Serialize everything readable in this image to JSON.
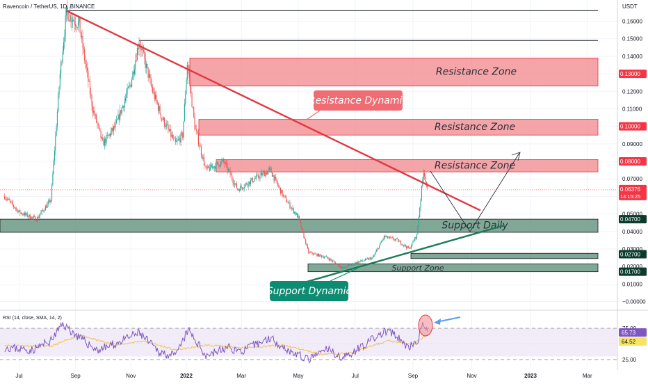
{
  "header": {
    "symbol_text": "Ravencoin / TetherUS, 1D, BINANCE",
    "currency": "USDT"
  },
  "rsi_header": "RSI (14, close, SMA, 14, 2)",
  "colors": {
    "up": "#26a69a",
    "down": "#ef5350",
    "resistance_fill": "#f28b8f",
    "support_fill": "#5e8f7a",
    "trend_red": "#e0373f",
    "trend_green": "#1b7a57",
    "rsi_line": "#7e57c2",
    "rsi_band": "#ede7f6",
    "price_tag": "#f23645"
  },
  "chart_data": [
    {
      "type": "line",
      "title": "Ravencoin / TetherUS, 1D, BINANCE",
      "xlabel": "",
      "ylabel": "USDT",
      "scale": "linear",
      "ylim": [
        -0.005,
        0.17
      ],
      "x_tick_labels": [
        "Jul",
        "Sep",
        "Nov",
        "2022",
        "Mar",
        "May",
        "Jul",
        "Sep",
        "Nov",
        "2023",
        "Mar"
      ],
      "y_tick_labels": [
        "0.16000",
        "0.15000",
        "0.14000",
        "0.13000",
        "0.12000",
        "0.11000",
        "0.10000",
        "0.09000",
        "0.08000",
        "0.07000",
        "0.06000",
        "0.05000",
        "0.04000",
        "0.03000",
        "0.02000",
        "0.01000",
        "−0.00000"
      ],
      "series": [
        {
          "points": [
            [
              "2021-06-15",
              0.06
            ],
            [
              "2021-07-01",
              0.051
            ],
            [
              "2021-07-20",
              0.047
            ],
            [
              "2021-08-05",
              0.058
            ],
            [
              "2021-08-15",
              0.13
            ],
            [
              "2021-08-22",
              0.165
            ],
            [
              "2021-09-05",
              0.158
            ],
            [
              "2021-09-20",
              0.11
            ],
            [
              "2021-10-01",
              0.09
            ],
            [
              "2021-10-15",
              0.1
            ],
            [
              "2021-11-01",
              0.125
            ],
            [
              "2021-11-10",
              0.149
            ],
            [
              "2021-11-25",
              0.12
            ],
            [
              "2021-12-05",
              0.105
            ],
            [
              "2021-12-20",
              0.09
            ],
            [
              "2021-12-28",
              0.095
            ],
            [
              "2022-01-02",
              0.136
            ],
            [
              "2022-01-10",
              0.1
            ],
            [
              "2022-01-22",
              0.075
            ],
            [
              "2022-02-10",
              0.08
            ],
            [
              "2022-02-25",
              0.064
            ],
            [
              "2022-03-15",
              0.07
            ],
            [
              "2022-04-01",
              0.075
            ],
            [
              "2022-04-15",
              0.06
            ],
            [
              "2022-05-01",
              0.048
            ],
            [
              "2022-05-12",
              0.028
            ],
            [
              "2022-06-01",
              0.025
            ],
            [
              "2022-06-18",
              0.019
            ],
            [
              "2022-07-01",
              0.022
            ],
            [
              "2022-07-20",
              0.025
            ],
            [
              "2022-08-01",
              0.037
            ],
            [
              "2022-08-15",
              0.035
            ],
            [
              "2022-08-28",
              0.03
            ],
            [
              "2022-09-05",
              0.038
            ],
            [
              "2022-09-12",
              0.075
            ],
            [
              "2022-09-16",
              0.0638
            ]
          ]
        }
      ],
      "last_price": "0.06376",
      "countdown": "14:15:25",
      "price_tags": [
        "0.13000",
        "0.10000",
        "0.08000",
        "0.04700",
        "0.02700",
        "0.01700"
      ],
      "zones": [
        {
          "label": "Resistance Zone",
          "kind": "resistance",
          "y_low": 0.123,
          "y_high": 0.139
        },
        {
          "label": "Resistance Zone",
          "kind": "resistance",
          "y_low": 0.095,
          "y_high": 0.104
        },
        {
          "label": "Resistance Zone",
          "kind": "resistance",
          "y_low": 0.074,
          "y_high": 0.081
        },
        {
          "label": "Support Daily",
          "kind": "support",
          "y_low": 0.0395,
          "y_high": 0.047
        },
        {
          "label": "",
          "kind": "support",
          "y_low": 0.0245,
          "y_high": 0.0275
        },
        {
          "label": "Support Zone",
          "kind": "support",
          "y_low": 0.017,
          "y_high": 0.0215
        }
      ],
      "trendlines": [
        {
          "label": "Resistance Dynamic",
          "kind": "resistance",
          "from": [
            "2021-08-22",
            0.166
          ],
          "to": [
            "2022-11-10",
            0.052
          ]
        },
        {
          "label": "Support Dynamic",
          "kind": "support",
          "from": [
            "2022-05-05",
            0.0105
          ],
          "to": [
            "2022-12-05",
            0.0435
          ]
        }
      ],
      "horizontal_levels": [
        0.166,
        0.149
      ]
    },
    {
      "type": "line",
      "title": "RSI (14, close, SMA, 14, 2)",
      "xlabel": "",
      "ylabel": "",
      "ylim": [
        19,
        86
      ],
      "y_tick_labels": [
        "75.00",
        "25.00"
      ],
      "series": [
        {
          "name": "RSI",
          "points": [
            [
              "2021-06-15",
              45
            ],
            [
              "2021-07-15",
              40
            ],
            [
              "2021-08-05",
              55
            ],
            [
              "2021-08-18",
              82
            ],
            [
              "2021-09-05",
              60
            ],
            [
              "2021-09-25",
              40
            ],
            [
              "2021-10-15",
              50
            ],
            [
              "2021-11-10",
              68
            ],
            [
              "2021-12-01",
              38
            ],
            [
              "2021-12-20",
              30
            ],
            [
              "2022-01-03",
              72
            ],
            [
              "2022-01-22",
              32
            ],
            [
              "2022-02-15",
              44
            ],
            [
              "2022-03-01",
              38
            ],
            [
              "2022-04-01",
              60
            ],
            [
              "2022-04-20",
              40
            ],
            [
              "2022-05-12",
              24
            ],
            [
              "2022-06-01",
              42
            ],
            [
              "2022-06-18",
              27
            ],
            [
              "2022-07-15",
              53
            ],
            [
              "2022-08-05",
              72
            ],
            [
              "2022-08-28",
              44
            ],
            [
              "2022-09-05",
              52
            ],
            [
              "2022-09-12",
              83
            ],
            [
              "2022-09-16",
              65.73
            ]
          ]
        },
        {
          "name": "SMA",
          "points": [
            [
              "2021-06-15",
              48
            ],
            [
              "2021-08-05",
              46
            ],
            [
              "2021-09-05",
              64
            ],
            [
              "2021-10-15",
              48
            ],
            [
              "2021-11-15",
              55
            ],
            [
              "2021-12-20",
              40
            ],
            [
              "2022-01-22",
              48
            ],
            [
              "2022-03-01",
              44
            ],
            [
              "2022-04-15",
              48
            ],
            [
              "2022-05-25",
              34
            ],
            [
              "2022-06-25",
              35
            ],
            [
              "2022-08-05",
              55
            ],
            [
              "2022-09-01",
              50
            ],
            [
              "2022-09-16",
              64.52
            ]
          ]
        }
      ],
      "last_rsi": "65.73",
      "last_sma": "64.52",
      "band": [
        30,
        75
      ]
    }
  ]
}
